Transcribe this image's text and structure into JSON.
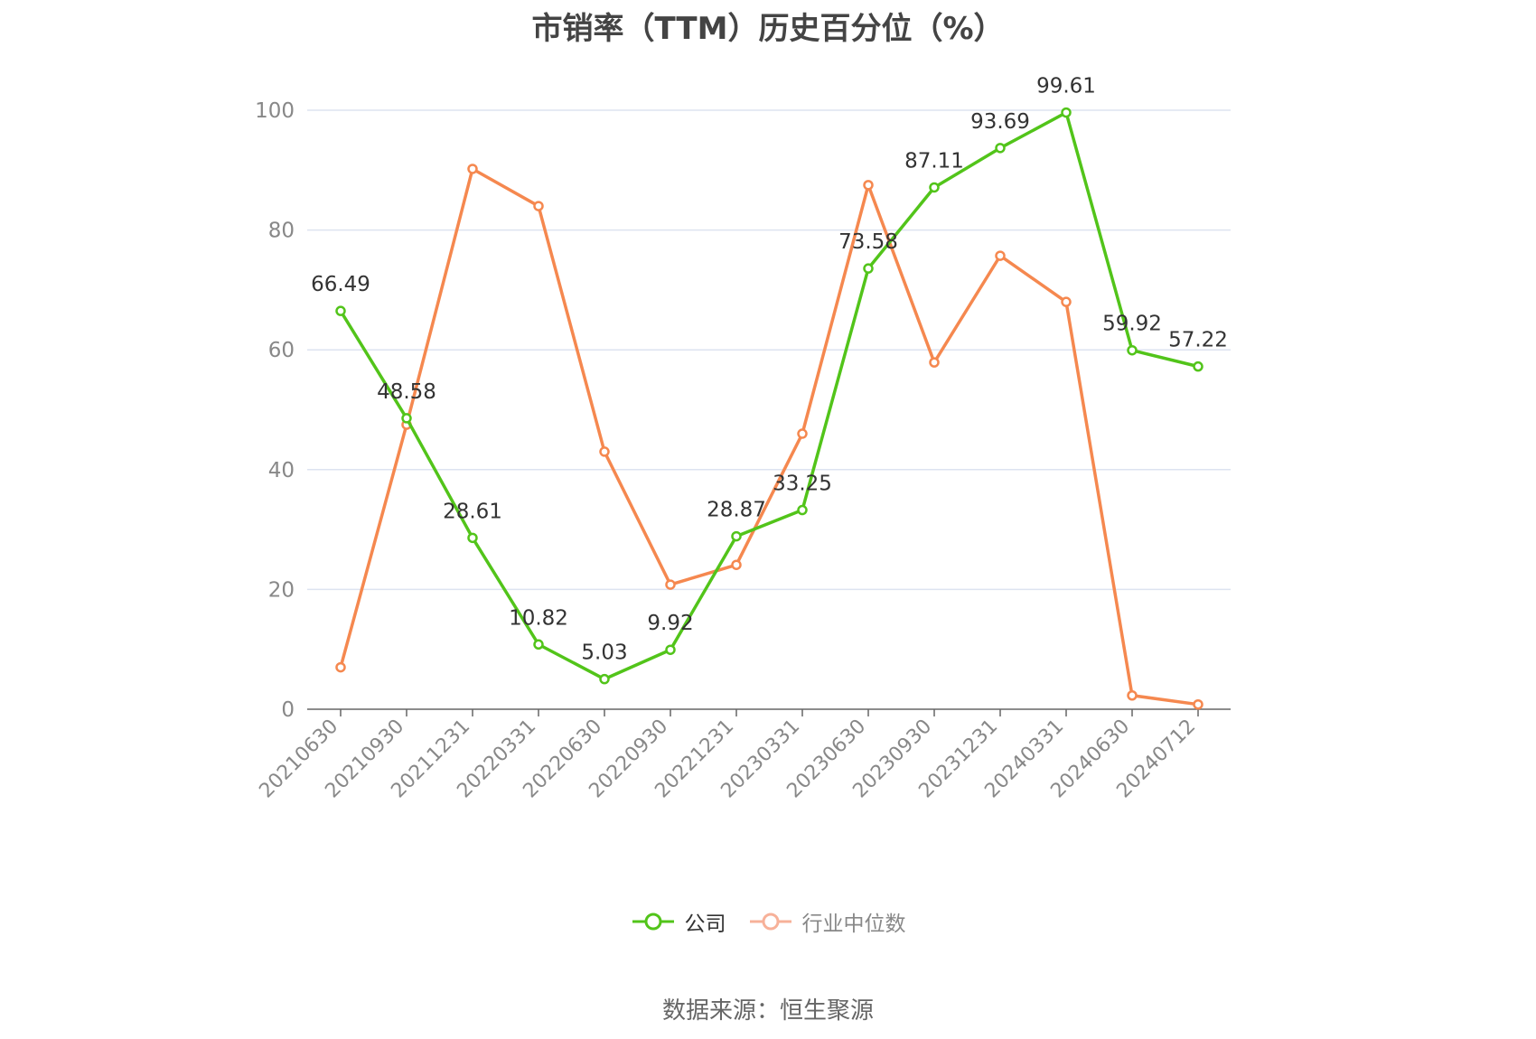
{
  "title": "市销率（TTM）历史百分位（%）",
  "source": "数据来源：恒生聚源",
  "colors": {
    "company": "#52c41a",
    "industry": "#f5884f",
    "industry_legend": "#f7b199",
    "grid": "#dde3f0",
    "axis": "#666666",
    "tick_text": "#888888",
    "label_text": "#333333"
  },
  "chart_data": {
    "type": "line",
    "title": "市销率（TTM）历史百分位（%）",
    "xlabel": "",
    "ylabel": "",
    "ylim": [
      0,
      100
    ],
    "yticks": [
      0,
      20,
      40,
      60,
      80,
      100
    ],
    "grid": true,
    "legend_position": "bottom-center",
    "categories": [
      "20210630",
      "20210930",
      "20211231",
      "20220331",
      "20220630",
      "20220930",
      "20221231",
      "20230331",
      "20230630",
      "20230930",
      "20231231",
      "20240331",
      "20240630",
      "20240712"
    ],
    "series": [
      {
        "name": "公司",
        "values": [
          66.49,
          48.58,
          28.61,
          10.82,
          5.03,
          9.92,
          28.87,
          33.25,
          73.58,
          87.11,
          93.69,
          99.61,
          59.92,
          57.22
        ],
        "labels_shown": true
      },
      {
        "name": "行业中位数",
        "values": [
          7.0,
          47.5,
          90.2,
          84.0,
          43.0,
          20.8,
          24.1,
          46.0,
          87.5,
          57.9,
          75.7,
          68.0,
          2.3,
          0.8
        ],
        "labels_shown": false
      }
    ]
  }
}
